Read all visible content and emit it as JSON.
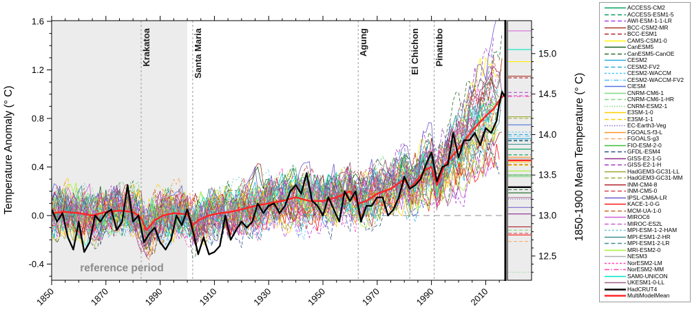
{
  "chart_data": {
    "type": "line",
    "title": "",
    "left_axis": {
      "label": "Temperature Anomaly (° C)",
      "ticks": [
        -0.4,
        0.0,
        0.4,
        0.8,
        1.2,
        1.6
      ],
      "range": [
        -0.53,
        1.61
      ],
      "minor_step": 0.1
    },
    "bottom_axis": {
      "ticks": [
        1850,
        1870,
        1890,
        1910,
        1930,
        1950,
        1970,
        1990,
        2010
      ],
      "range": [
        1850,
        2017
      ],
      "minor_step": 5
    },
    "right_axis": {
      "label": "1850-1900 Mean Temperature (° C)",
      "ticks": [
        12.5,
        13.0,
        13.5,
        14.0,
        14.5,
        15.0
      ],
      "range": [
        12.2,
        15.4
      ],
      "minor_step": 0.1
    },
    "reference_period": {
      "start": 1850,
      "end": 1900,
      "label": "reference period",
      "shade_color": "#ECECEC",
      "label_color": "#8C8C8C"
    },
    "zero_line": 0.0,
    "volcanoes": [
      {
        "name": "Krakatoa",
        "year": 1883
      },
      {
        "name": "Santa Maria",
        "year": 1902
      },
      {
        "name": "Agung",
        "year": 1963
      },
      {
        "name": "El Chichon",
        "year": 1982
      },
      {
        "name": "Pinatubo",
        "year": 1991
      }
    ],
    "observed": {
      "name": "HadCRUT4",
      "color": "#000000",
      "dash": "solid",
      "line_width": 2.3,
      "mean_1850_1900": 13.35,
      "years": [
        1850,
        1852,
        1854,
        1856,
        1858,
        1860,
        1862,
        1864,
        1866,
        1868,
        1870,
        1872,
        1874,
        1876,
        1878,
        1880,
        1882,
        1884,
        1886,
        1888,
        1890,
        1892,
        1894,
        1896,
        1898,
        1900,
        1902,
        1904,
        1906,
        1908,
        1910,
        1912,
        1914,
        1916,
        1918,
        1920,
        1922,
        1924,
        1926,
        1928,
        1930,
        1932,
        1934,
        1936,
        1938,
        1940,
        1942,
        1944,
        1946,
        1948,
        1950,
        1952,
        1954,
        1956,
        1958,
        1960,
        1962,
        1964,
        1966,
        1968,
        1970,
        1972,
        1974,
        1976,
        1978,
        1980,
        1982,
        1984,
        1986,
        1988,
        1990,
        1992,
        1994,
        1996,
        1998,
        2000,
        2002,
        2004,
        2006,
        2008,
        2010,
        2012,
        2014,
        2015,
        2016,
        2017
      ],
      "values": [
        0.05,
        -0.05,
        0.02,
        -0.18,
        -0.28,
        -0.05,
        -0.3,
        -0.22,
        0.0,
        -0.05,
        0.02,
        0.05,
        -0.12,
        -0.05,
        0.25,
        -0.05,
        0.0,
        -0.22,
        -0.15,
        -0.1,
        -0.22,
        -0.28,
        -0.2,
        0.0,
        -0.08,
        0.05,
        -0.12,
        -0.32,
        -0.18,
        -0.32,
        -0.3,
        -0.25,
        0.0,
        -0.2,
        -0.12,
        -0.05,
        -0.1,
        -0.05,
        0.1,
        0.02,
        0.08,
        0.1,
        0.02,
        0.08,
        0.2,
        0.25,
        0.18,
        0.35,
        0.12,
        0.08,
        0.0,
        0.15,
        0.05,
        -0.05,
        0.2,
        0.12,
        0.2,
        -0.05,
        0.08,
        0.08,
        0.15,
        0.15,
        0.0,
        0.05,
        0.15,
        0.32,
        0.22,
        0.25,
        0.3,
        0.42,
        0.52,
        0.28,
        0.4,
        0.42,
        0.68,
        0.48,
        0.62,
        0.62,
        0.68,
        0.58,
        0.72,
        0.68,
        0.78,
        0.92,
        1.02,
        0.98
      ]
    },
    "multi_model_mean": {
      "name": "MultiModelMean",
      "color": "#FF2626",
      "dash": "solid",
      "line_width": 2.5,
      "mean_1850_1900": 13.68,
      "years": [
        1850,
        1855,
        1860,
        1865,
        1870,
        1875,
        1880,
        1883,
        1885,
        1888,
        1891,
        1895,
        1900,
        1902,
        1904,
        1908,
        1912,
        1916,
        1920,
        1925,
        1930,
        1935,
        1940,
        1945,
        1950,
        1955,
        1960,
        1963,
        1966,
        1970,
        1975,
        1980,
        1982,
        1985,
        1988,
        1990,
        1992,
        1995,
        2000,
        2005,
        2010,
        2013,
        2015,
        2017
      ],
      "values": [
        0.02,
        0.03,
        0.02,
        0.0,
        0.03,
        0.04,
        0.03,
        -0.02,
        -0.12,
        -0.04,
        0.0,
        0.02,
        0.01,
        -0.08,
        -0.04,
        0.0,
        0.02,
        0.03,
        0.05,
        0.08,
        0.1,
        0.12,
        0.15,
        0.12,
        0.12,
        0.15,
        0.2,
        0.1,
        0.12,
        0.18,
        0.22,
        0.3,
        0.22,
        0.3,
        0.38,
        0.4,
        0.25,
        0.42,
        0.55,
        0.7,
        0.82,
        0.88,
        0.95,
        1.0
      ]
    },
    "models": [
      {
        "name": "ACCESS-CM2",
        "color": "#00A15D",
        "dash": "solid",
        "mean_1850_1900": 13.82
      },
      {
        "name": "ACCESS-ESM1-5",
        "color": "#00A15D",
        "dash": "dash",
        "mean_1850_1900": 13.75
      },
      {
        "name": "AWI-ESM-1-1-LR",
        "color": "#B03EE8",
        "dash": "dash",
        "mean_1850_1900": 13.5
      },
      {
        "name": "BCC-CSM2-MR",
        "color": "#A93226",
        "dash": "solid",
        "mean_1850_1900": 14.72
      },
      {
        "name": "BCC-ESM1",
        "color": "#B22222",
        "dash": "dash",
        "mean_1850_1900": 14.7
      },
      {
        "name": "CAMS-CSM1-0",
        "color": "#FFF200",
        "dash": "solid",
        "mean_1850_1900": 14.9
      },
      {
        "name": "CanESM5",
        "color": "#14601C",
        "dash": "solid",
        "mean_1850_1900": 13.28
      },
      {
        "name": "CanESM5-CanOE",
        "color": "#2E6B34",
        "dash": "dash",
        "mean_1850_1900": 13.32
      },
      {
        "name": "CESM2",
        "color": "#29ABE2",
        "dash": "solid",
        "mean_1850_1900": 13.95
      },
      {
        "name": "CESM2-FV2",
        "color": "#29ABE2",
        "dash": "dash",
        "mean_1850_1900": 14.0
      },
      {
        "name": "CESM2-WACCM",
        "color": "#4FC3F7",
        "dash": "dash-small",
        "mean_1850_1900": 14.03
      },
      {
        "name": "CESM2-WACCM-FV2",
        "color": "#4FC3F7",
        "dash": "dash-dot",
        "mean_1850_1900": 13.98
      },
      {
        "name": "CIESM",
        "color": "#5072E0",
        "dash": "solid",
        "mean_1850_1900": 14.12
      },
      {
        "name": "CNRM-CM6-1",
        "color": "#7FD87F",
        "dash": "solid",
        "mean_1850_1900": 13.48
      },
      {
        "name": "CNRM-CM6-1-HR",
        "color": "#7FD87F",
        "dash": "dash",
        "mean_1850_1900": 12.82
      },
      {
        "name": "CNRM-ESM2-1",
        "color": "#7FD87F",
        "dash": "dot",
        "mean_1850_1900": 12.3
      },
      {
        "name": "E3SM-1-0",
        "color": "#FFCE00",
        "dash": "solid",
        "mean_1850_1900": 13.66
      },
      {
        "name": "E3SM-1-1",
        "color": "#FFCE00",
        "dash": "dash",
        "mean_1850_1900": 13.62
      },
      {
        "name": "EC-Earth3-Veg",
        "color": "#8A6FD1",
        "dash": "dot",
        "mean_1850_1900": 13.2
      },
      {
        "name": "FGOALS-f3-L",
        "color": "#FF9226",
        "dash": "solid",
        "mean_1850_1900": 13.72
      },
      {
        "name": "FGOALS-g3",
        "color": "#FBA55C",
        "dash": "dash",
        "mean_1850_1900": 12.68
      },
      {
        "name": "FIO-ESM-2-0",
        "color": "#3DBE3D",
        "dash": "solid",
        "mean_1850_1900": 13.5
      },
      {
        "name": "GFDL-ESM4",
        "color": "#2C4E8A",
        "dash": "dash",
        "mean_1850_1900": 13.93
      },
      {
        "name": "GISS-E2-1-G",
        "color": "#8E2A8E",
        "dash": "solid",
        "mean_1850_1900": 13.02
      },
      {
        "name": "GISS-E2-1-H",
        "color": "#A238C8",
        "dash": "dash",
        "mean_1850_1900": 14.52
      },
      {
        "name": "HadGEM3-GC31-LL",
        "color": "#9CA832",
        "dash": "solid",
        "mean_1850_1900": 14.22
      },
      {
        "name": "HadGEM3-GC31-MM",
        "color": "#9CA832",
        "dash": "dash",
        "mean_1850_1900": 14.2
      },
      {
        "name": "INM-CM4-8",
        "color": "#B01E28",
        "dash": "solid",
        "mean_1850_1900": 12.86
      },
      {
        "name": "INM-CM5-0",
        "color": "#D8404A",
        "dash": "dash",
        "mean_1850_1900": 12.78
      },
      {
        "name": "IPSL-CM6A-LR",
        "color": "#6A5ACD",
        "dash": "solid",
        "mean_1850_1900": 13.1
      },
      {
        "name": "KACE-1-0-G",
        "color": "#FF1414",
        "dash": "solid",
        "mean_1850_1900": 12.76
      },
      {
        "name": "MCM-UA-1-0",
        "color": "#C8671E",
        "dash": "dash",
        "mean_1850_1900": 13.63
      },
      {
        "name": "MIROC6",
        "color": "#CF5FD3",
        "dash": "solid",
        "mean_1850_1900": 15.28
      },
      {
        "name": "MIROC-ES2L",
        "color": "#CF5FD3",
        "dash": "dash",
        "mean_1850_1900": 14.48
      },
      {
        "name": "MPI-ESM-1-2-HAM",
        "color": "#6FC8D2",
        "dash": "dash-small",
        "mean_1850_1900": 13.35
      },
      {
        "name": "MPI-ESM1-2-HR",
        "color": "#3A8F93",
        "dash": "solid",
        "mean_1850_1900": 13.88
      },
      {
        "name": "MPI-ESM1-2-LR",
        "color": "#3A8F93",
        "dash": "dash",
        "mean_1850_1900": 13.92
      },
      {
        "name": "MRI-ESM2-0",
        "color": "#A6F22F",
        "dash": "solid",
        "mean_1850_1900": 13.55
      },
      {
        "name": "NESM3",
        "color": "#ADADAD",
        "dash": "solid",
        "mean_1850_1900": 13.7
      },
      {
        "name": "NorESM2-LM",
        "color": "#FF3FB4",
        "dash": "dash-small",
        "mean_1850_1900": 13.68
      },
      {
        "name": "NorESM2-MM",
        "color": "#FF3FB4",
        "dash": "dash-dot",
        "mean_1850_1900": 14.47
      },
      {
        "name": "SAM0-UNICON",
        "color": "#00E3C3",
        "dash": "solid",
        "mean_1850_1900": 15.05
      },
      {
        "name": "UKESM1-0-LL",
        "color": "#9E5C80",
        "dash": "solid",
        "mean_1850_1900": 13.22
      }
    ],
    "legend_position": "right"
  }
}
